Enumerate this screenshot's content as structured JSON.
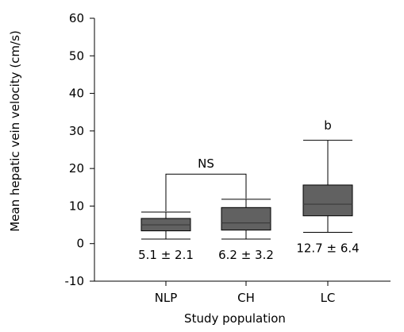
{
  "chart_data": {
    "type": "box",
    "xlabel": "Study population",
    "ylabel": "Mean hepatic vein velocity (cm/s)",
    "ylim": [
      -10,
      60
    ],
    "yticks": [
      -10,
      0,
      10,
      20,
      30,
      40,
      50,
      60
    ],
    "grid": false,
    "categories": [
      "NLP",
      "CH",
      "LC"
    ],
    "boxes": [
      {
        "category": "NLP",
        "whisker_low": 1.2,
        "q1": 3.4,
        "median": 5.0,
        "q3": 6.7,
        "whisker_high": 8.4,
        "annotation": "5.1 ± 2.1"
      },
      {
        "category": "CH",
        "whisker_low": 1.2,
        "q1": 3.6,
        "median": 5.5,
        "q3": 9.6,
        "whisker_high": 11.8,
        "annotation": "6.2 ± 3.2"
      },
      {
        "category": "LC",
        "whisker_low": 3.0,
        "q1": 7.4,
        "median": 10.5,
        "q3": 15.6,
        "whisker_high": 27.5,
        "annotation": "12.7 ± 6.4"
      }
    ],
    "significance": [
      {
        "between": [
          "NLP",
          "CH"
        ],
        "label": "NS",
        "bracket_y": 18.5
      },
      {
        "above": "LC",
        "label": "b",
        "y": 31.5
      }
    ],
    "colors": {
      "box_fill": "#616161",
      "median_line": "#3a3a3a",
      "line": "#000000"
    }
  }
}
